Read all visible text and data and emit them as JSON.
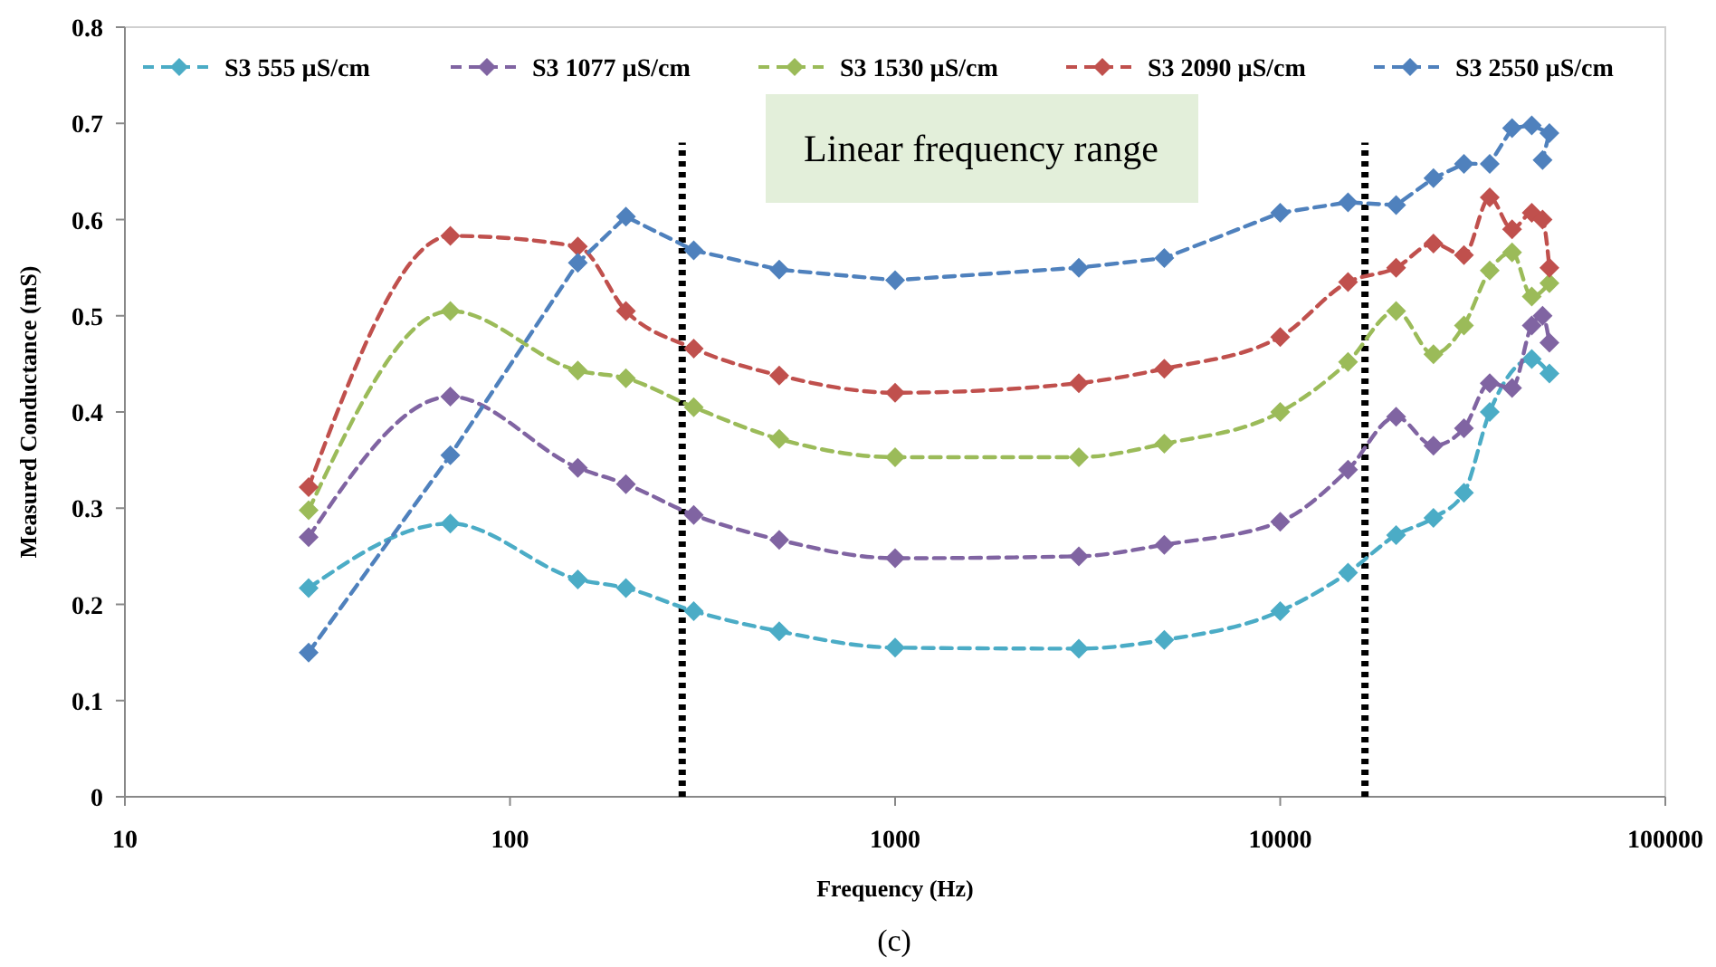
{
  "chart_data": {
    "type": "line",
    "xlabel": "Frequency (Hz)",
    "ylabel": "Measured Conductance (mS)",
    "log": "x",
    "xlim": [
      10,
      100000
    ],
    "xticks": [
      10,
      100,
      1000,
      10000,
      100000
    ],
    "ylim": [
      0,
      0.8
    ],
    "yticks": [
      0,
      0.1,
      0.2,
      0.3,
      0.4,
      0.5,
      0.6,
      0.7,
      0.8
    ],
    "grid": false,
    "legend": "top",
    "marker": "diamond",
    "line_style": "dashed",
    "series": [
      {
        "name": "S3 555 µS/cm",
        "color": "#4bacc6",
        "x": [
          30,
          70,
          150,
          200,
          300,
          500,
          1000,
          3000,
          5000,
          10000,
          15000,
          20000,
          25000,
          30000,
          35000,
          45000,
          50000
        ],
        "values": [
          0.217,
          0.284,
          0.226,
          0.217,
          0.193,
          0.172,
          0.155,
          0.154,
          0.163,
          0.193,
          0.233,
          0.272,
          0.29,
          0.316,
          0.4,
          0.455,
          0.44
        ]
      },
      {
        "name": "S3 1077 µS/cm",
        "color": "#8064a2",
        "x": [
          30,
          70,
          150,
          200,
          300,
          500,
          1000,
          3000,
          5000,
          10000,
          15000,
          20000,
          25000,
          30000,
          35000,
          40000,
          45000,
          48000,
          50000
        ],
        "values": [
          0.27,
          0.416,
          0.342,
          0.325,
          0.293,
          0.267,
          0.248,
          0.25,
          0.262,
          0.286,
          0.34,
          0.395,
          0.365,
          0.383,
          0.43,
          0.425,
          0.49,
          0.5,
          0.472
        ]
      },
      {
        "name": "S3 1530 µS/cm",
        "color": "#9bbb59",
        "x": [
          30,
          70,
          150,
          200,
          300,
          500,
          1000,
          3000,
          5000,
          10000,
          15000,
          20000,
          25000,
          30000,
          35000,
          40000,
          45000,
          50000
        ],
        "values": [
          0.298,
          0.505,
          0.443,
          0.435,
          0.405,
          0.372,
          0.353,
          0.353,
          0.367,
          0.4,
          0.452,
          0.505,
          0.46,
          0.49,
          0.547,
          0.566,
          0.52,
          0.534
        ]
      },
      {
        "name": "S3 2090 µS/cm",
        "color": "#c0504d",
        "x": [
          30,
          70,
          150,
          200,
          300,
          500,
          1000,
          3000,
          5000,
          10000,
          15000,
          20000,
          25000,
          30000,
          35000,
          40000,
          45000,
          48000,
          50000
        ],
        "values": [
          0.322,
          0.583,
          0.572,
          0.505,
          0.466,
          0.438,
          0.42,
          0.43,
          0.445,
          0.478,
          0.535,
          0.55,
          0.575,
          0.563,
          0.623,
          0.59,
          0.607,
          0.6,
          0.55
        ]
      },
      {
        "name": "S3 2550 µS/cm",
        "color": "#4f81bd",
        "x": [
          30,
          70,
          150,
          200,
          300,
          500,
          1000,
          3000,
          5000,
          10000,
          15000,
          20000,
          25000,
          30000,
          35000,
          40000,
          45000,
          50000,
          48000
        ],
        "values": [
          0.15,
          0.355,
          0.555,
          0.603,
          0.568,
          0.548,
          0.537,
          0.55,
          0.56,
          0.607,
          0.618,
          0.615,
          0.643,
          0.658,
          0.658,
          0.695,
          0.698,
          0.69,
          0.662
        ]
      }
    ],
    "ref_lines": [
      {
        "axis": "x",
        "value": 280,
        "color": "#000000",
        "line_style": "dotted"
      },
      {
        "axis": "x",
        "value": 16600,
        "color": "#000000",
        "line_style": "dotted"
      }
    ],
    "annotations": [
      "Linear frequency range",
      "(c)"
    ]
  }
}
